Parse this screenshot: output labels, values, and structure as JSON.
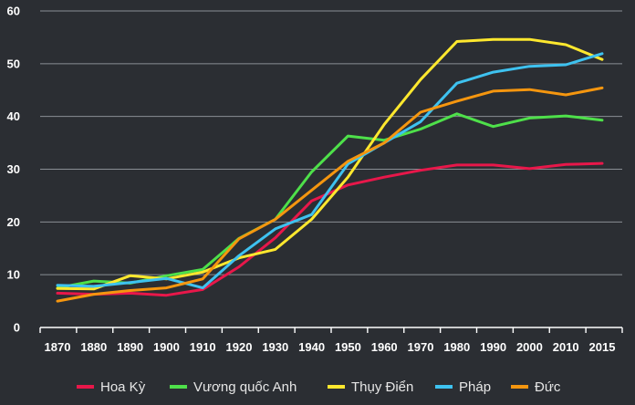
{
  "chart_data": {
    "type": "line",
    "title": "",
    "xlabel": "",
    "ylabel": "",
    "ylim": [
      0,
      60
    ],
    "yticks": [
      0,
      10,
      20,
      30,
      40,
      50,
      60
    ],
    "x": [
      1870,
      1880,
      1890,
      1900,
      1910,
      1920,
      1930,
      1940,
      1950,
      1960,
      1970,
      1980,
      1990,
      2000,
      2010,
      2015
    ],
    "grid": "horizontal",
    "legend_position": "bottom",
    "series": [
      {
        "name": "Hoa Kỳ",
        "color": "#e8174a",
        "values": [
          6.5,
          6.3,
          6.5,
          6.1,
          7.2,
          11.5,
          17.0,
          24.0,
          27.0,
          28.5,
          29.8,
          30.8,
          30.8,
          30.1,
          30.9,
          31.1
        ]
      },
      {
        "name": "Vương quốc Anh",
        "color": "#4ee04a",
        "values": [
          7.5,
          8.8,
          8.4,
          9.8,
          11.0,
          16.9,
          20.5,
          29.5,
          36.3,
          35.5,
          37.6,
          40.5,
          38.1,
          39.7,
          40.1,
          39.3
        ]
      },
      {
        "name": "Thụy Điển",
        "color": "#ffe82e",
        "values": [
          7.4,
          7.3,
          9.8,
          9.2,
          10.5,
          13.2,
          14.8,
          20.5,
          28.5,
          38.5,
          47.0,
          54.2,
          54.6,
          54.6,
          53.6,
          50.8
        ]
      },
      {
        "name": "Pháp",
        "color": "#3ec2f0",
        "values": [
          8.0,
          7.8,
          8.5,
          9.3,
          7.5,
          13.6,
          18.7,
          21.4,
          31.0,
          35.0,
          39.0,
          46.3,
          48.4,
          49.5,
          49.8,
          51.9
        ]
      },
      {
        "name": "Đức",
        "color": "#f5960f",
        "values": [
          5.0,
          6.3,
          7.0,
          7.5,
          9.2,
          16.8,
          20.5,
          26.0,
          31.5,
          35.0,
          40.8,
          42.9,
          44.8,
          45.1,
          44.1,
          45.4
        ]
      }
    ]
  }
}
